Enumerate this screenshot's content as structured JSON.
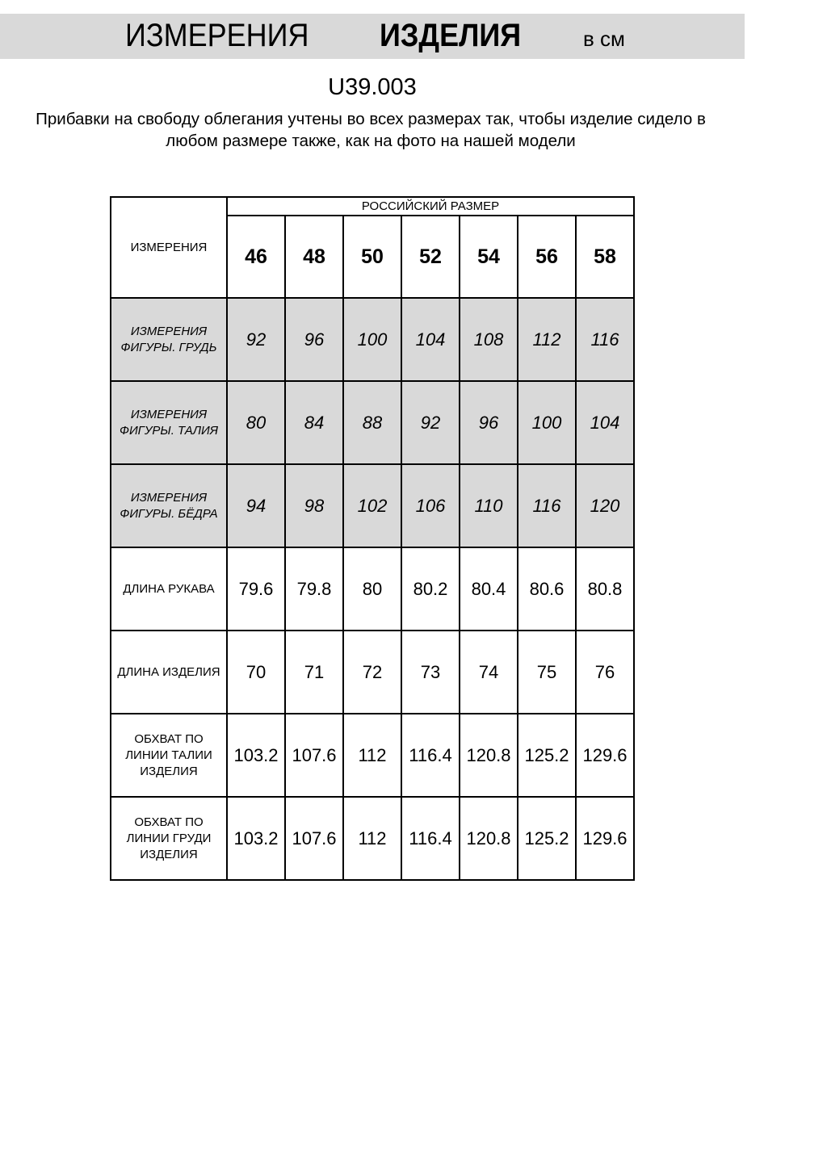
{
  "header": {
    "title_light": "ИЗМЕРЕНИЯ",
    "title_bold": "ИЗДЕЛИЯ",
    "unit": "в см"
  },
  "article": "U39.003",
  "note_lines": [
    "Прибавки на свободу облегания учтены во всех размерах так, чтобы изделие сидело в",
    "любом размере также, как на фото на нашей модели"
  ],
  "table": {
    "corner_label": "ИЗМЕРЕНИЯ",
    "size_group_label": "РОССИЙСКИЙ РАЗМЕР",
    "sizes": [
      "46",
      "48",
      "50",
      "52",
      "54",
      "56",
      "58"
    ],
    "rows": [
      {
        "label": "ИЗМЕРЕНИЯ ФИГУРЫ. ГРУДЬ",
        "shaded": true,
        "values": [
          "92",
          "96",
          "100",
          "104",
          "108",
          "112",
          "116"
        ]
      },
      {
        "label": "ИЗМЕРЕНИЯ ФИГУРЫ. ТАЛИЯ",
        "shaded": true,
        "values": [
          "80",
          "84",
          "88",
          "92",
          "96",
          "100",
          "104"
        ]
      },
      {
        "label": "ИЗМЕРЕНИЯ ФИГУРЫ. БЁДРА",
        "shaded": true,
        "values": [
          "94",
          "98",
          "102",
          "106",
          "110",
          "116",
          "120"
        ]
      },
      {
        "label": "ДЛИНА РУКАВА",
        "shaded": false,
        "values": [
          "79.6",
          "79.8",
          "80",
          "80.2",
          "80.4",
          "80.6",
          "80.8"
        ]
      },
      {
        "label": "ДЛИНА ИЗДЕЛИЯ",
        "shaded": false,
        "values": [
          "70",
          "71",
          "72",
          "73",
          "74",
          "75",
          "76"
        ]
      },
      {
        "label": "ОБХВАТ ПО ЛИНИИ ТАЛИИ ИЗДЕЛИЯ",
        "shaded": false,
        "values": [
          "103.2",
          "107.6",
          "112",
          "116.4",
          "120.8",
          "125.2",
          "129.6"
        ]
      },
      {
        "label": "ОБХВАТ ПО ЛИНИИ ГРУДИ ИЗДЕЛИЯ",
        "shaded": false,
        "values": [
          "103.2",
          "107.6",
          "112",
          "116.4",
          "120.8",
          "125.2",
          "129.6"
        ]
      }
    ]
  },
  "colors": {
    "shade": "#d9d9d9"
  }
}
